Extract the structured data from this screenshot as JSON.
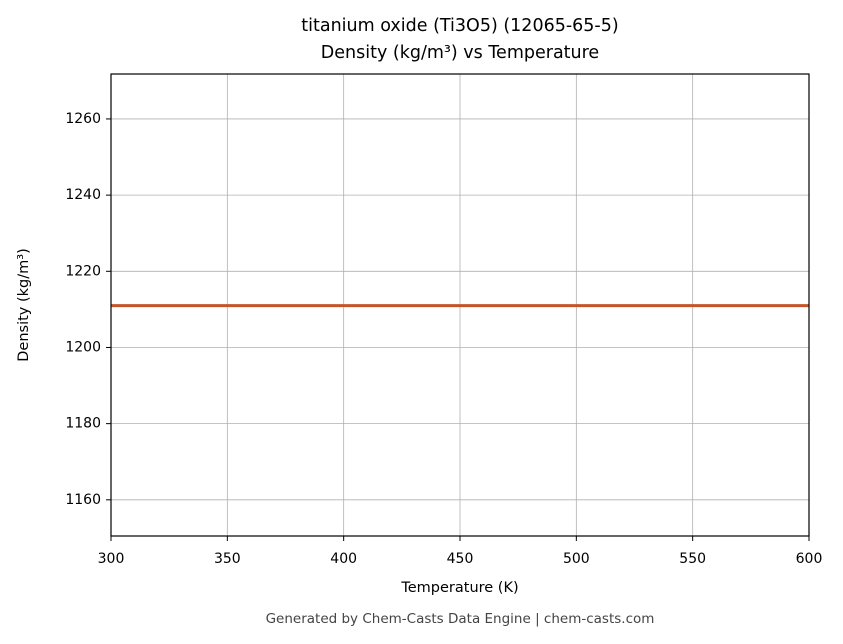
{
  "chart_data": {
    "type": "line",
    "title": "titanium oxide (Ti3O5) (12065-65-5)",
    "subtitle": "Density (kg/m³) vs Temperature",
    "x_label": "Temperature (K)",
    "y_label": "Density (kg/m³)",
    "x": [
      300,
      600
    ],
    "series": [
      {
        "name": "Density",
        "color": "#c4542c",
        "values": [
          1211,
          1211
        ]
      }
    ],
    "xlim": [
      300,
      600
    ],
    "xticks": [
      300,
      350,
      400,
      450,
      500,
      550,
      600
    ],
    "ylim": [
      1150.5,
      1271.8
    ],
    "yticks": [
      1160,
      1180,
      1200,
      1220,
      1240,
      1260
    ],
    "grid": true,
    "footer": "Generated by Chem-Casts Data Engine | chem-casts.com"
  }
}
